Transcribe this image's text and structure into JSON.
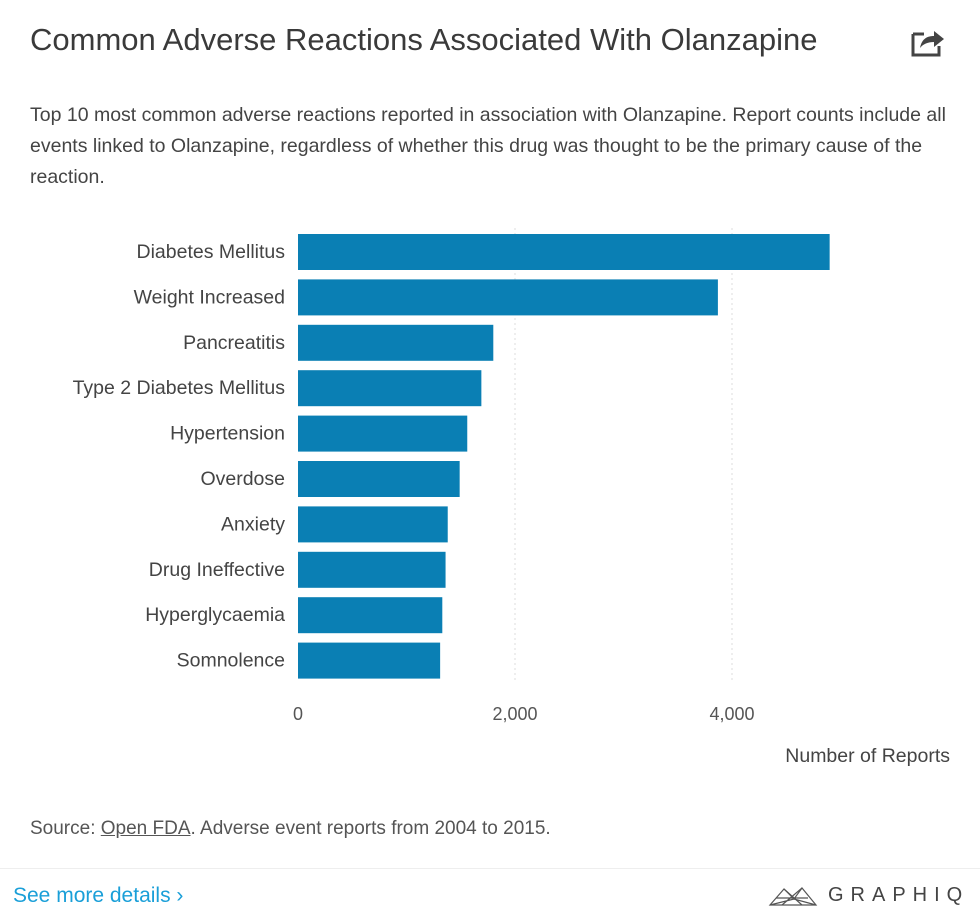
{
  "header": {
    "title": "Common Adverse Reactions Associated With Olanzapine",
    "subtitle": "Top 10 most common adverse reactions reported in association with Olanzapine. Report counts include all events linked to Olanzapine, regardless of whether this drug was thought to be the primary cause of the reaction.",
    "share_icon": "share-icon"
  },
  "chart_data": {
    "type": "bar",
    "orientation": "horizontal",
    "categories": [
      "Diabetes Mellitus",
      "Weight Increased",
      "Pancreatitis",
      "Type 2 Diabetes Mellitus",
      "Hypertension",
      "Overdose",
      "Anxiety",
      "Drug Ineffective",
      "Hyperglycaemia",
      "Somnolence"
    ],
    "values": [
      4900,
      3870,
      1800,
      1690,
      1560,
      1490,
      1380,
      1360,
      1330,
      1310
    ],
    "xlabel": "Number of Reports",
    "xticks": [
      "0",
      "2,000",
      "4,000"
    ],
    "xtick_values": [
      0,
      2000,
      4000
    ],
    "xlim": [
      0,
      5000
    ],
    "grid": "vertical dotted",
    "bar_color": "#0a7fb4"
  },
  "footer": {
    "source_prefix": "Source: ",
    "source_link": "Open FDA",
    "source_suffix": ". Adverse event reports from 2004 to 2015.",
    "more_link": "See more details ›",
    "brand": "GRAPHIQ",
    "link_color": "#1a9fd8"
  }
}
